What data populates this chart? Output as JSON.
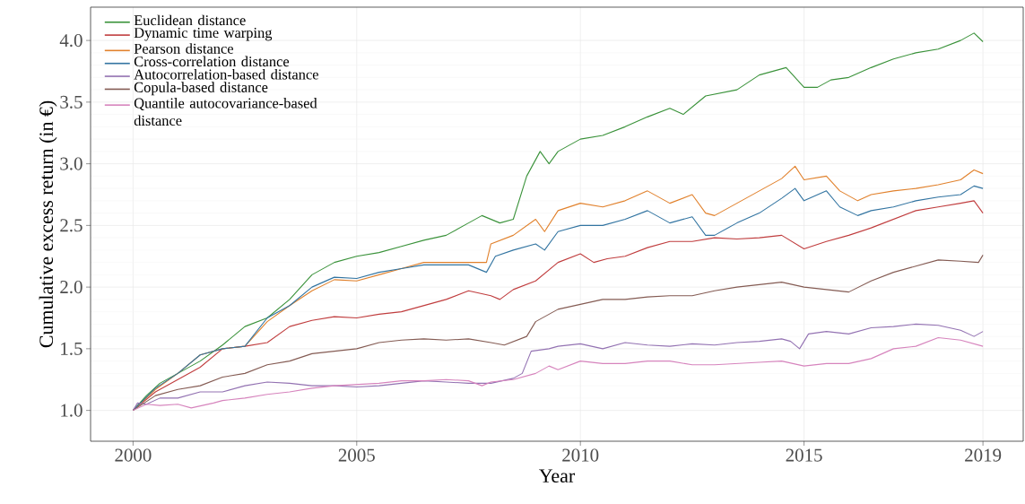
{
  "chart_data": {
    "type": "line",
    "xlabel": "Year",
    "ylabel": "Cumulative excess return (in €)",
    "xlim": [
      1999.05,
      2019.9
    ],
    "ylim": [
      0.75,
      4.27
    ],
    "xticks": [
      2000,
      2005,
      2010,
      2015,
      2019
    ],
    "yticks": [
      {
        "value": 1,
        "label": "1.0"
      },
      {
        "value": 1.5,
        "label": "1.5"
      },
      {
        "value": 2,
        "label": "2.0"
      },
      {
        "value": 2.5,
        "label": "2.5"
      },
      {
        "value": 3,
        "label": "3.0"
      },
      {
        "value": 3.5,
        "label": "3.5"
      },
      {
        "value": 4,
        "label": "4.0"
      }
    ],
    "grid": true,
    "legend": "top left",
    "line_style": "solid",
    "series": [
      {
        "name": "Euclidean distance",
        "color": "#3a923a",
        "x": [
          2000,
          2000.3,
          2000.6,
          2001,
          2001.5,
          2002,
          2002.5,
          2003,
          2003.5,
          2004,
          2004.5,
          2005,
          2005.5,
          2006,
          2006.5,
          2007,
          2007.5,
          2007.8,
          2008.2,
          2008.5,
          2008.8,
          2009.1,
          2009.3,
          2009.5,
          2010,
          2010.5,
          2011,
          2011.5,
          2012,
          2012.3,
          2012.8,
          2013.5,
          2014,
          2014.6,
          2015,
          2015.3,
          2015.6,
          2016,
          2016.5,
          2017,
          2017.5,
          2018,
          2018.5,
          2018.8,
          2019
        ],
        "values": [
          1.0,
          1.12,
          1.22,
          1.3,
          1.4,
          1.53,
          1.68,
          1.75,
          1.9,
          2.1,
          2.2,
          2.25,
          2.28,
          2.33,
          2.38,
          2.42,
          2.52,
          2.58,
          2.52,
          2.55,
          2.9,
          3.1,
          3.0,
          3.1,
          3.2,
          3.23,
          3.3,
          3.38,
          3.45,
          3.4,
          3.55,
          3.6,
          3.72,
          3.78,
          3.62,
          3.62,
          3.68,
          3.7,
          3.78,
          3.85,
          3.9,
          3.93,
          4.0,
          4.06,
          3.99
        ]
      },
      {
        "name": "Dynamic time warping",
        "color": "#c03d3e",
        "x": [
          2000,
          2000.5,
          2001,
          2001.5,
          2002,
          2002.5,
          2003,
          2003.5,
          2004,
          2004.5,
          2005,
          2005.5,
          2006,
          2006.5,
          2007,
          2007.5,
          2008,
          2008.2,
          2008.5,
          2009,
          2009.5,
          2010,
          2010.3,
          2010.6,
          2011,
          2011.5,
          2012,
          2012.5,
          2013,
          2013.5,
          2014,
          2014.5,
          2015,
          2015.5,
          2016,
          2016.5,
          2017,
          2017.5,
          2018,
          2018.5,
          2018.8,
          2019
        ],
        "values": [
          1.0,
          1.15,
          1.25,
          1.35,
          1.5,
          1.52,
          1.55,
          1.68,
          1.73,
          1.76,
          1.75,
          1.78,
          1.8,
          1.85,
          1.9,
          1.97,
          1.93,
          1.9,
          1.98,
          2.05,
          2.2,
          2.27,
          2.2,
          2.23,
          2.25,
          2.32,
          2.37,
          2.37,
          2.4,
          2.39,
          2.4,
          2.42,
          2.31,
          2.37,
          2.42,
          2.48,
          2.55,
          2.62,
          2.65,
          2.68,
          2.7,
          2.6
        ]
      },
      {
        "name": "Pearson distance",
        "color": "#e1812c",
        "x": [
          2000,
          2000.5,
          2001,
          2001.5,
          2002,
          2002.5,
          2003,
          2003.5,
          2004,
          2004.5,
          2005,
          2005.5,
          2006,
          2006.5,
          2007,
          2007.5,
          2007.9,
          2008,
          2008.5,
          2009,
          2009.2,
          2009.5,
          2010,
          2010.5,
          2011,
          2011.5,
          2012,
          2012.5,
          2012.8,
          2013,
          2013.5,
          2014,
          2014.5,
          2014.8,
          2015,
          2015.5,
          2015.8,
          2016.2,
          2016.5,
          2017,
          2017.5,
          2018,
          2018.5,
          2018.8,
          2019
        ],
        "values": [
          1.0,
          1.17,
          1.3,
          1.45,
          1.5,
          1.52,
          1.72,
          1.85,
          1.97,
          2.06,
          2.05,
          2.1,
          2.15,
          2.2,
          2.2,
          2.2,
          2.2,
          2.35,
          2.42,
          2.55,
          2.45,
          2.62,
          2.68,
          2.65,
          2.7,
          2.78,
          2.68,
          2.75,
          2.6,
          2.58,
          2.68,
          2.78,
          2.88,
          2.98,
          2.87,
          2.9,
          2.78,
          2.7,
          2.75,
          2.78,
          2.8,
          2.83,
          2.87,
          2.95,
          2.92
        ]
      },
      {
        "name": "Cross-correlation distance",
        "color": "#3274a1",
        "x": [
          2000,
          2000.5,
          2001,
          2001.5,
          2002,
          2002.5,
          2003,
          2003.5,
          2004,
          2004.5,
          2005,
          2005.5,
          2006,
          2006.5,
          2007,
          2007.5,
          2007.9,
          2008.1,
          2008.5,
          2009,
          2009.2,
          2009.5,
          2010,
          2010.5,
          2011,
          2011.5,
          2012,
          2012.5,
          2012.8,
          2013,
          2013.5,
          2014,
          2014.5,
          2014.8,
          2015,
          2015.5,
          2015.8,
          2016.2,
          2016.5,
          2017,
          2017.5,
          2018,
          2018.5,
          2018.8,
          2019
        ],
        "values": [
          1.0,
          1.18,
          1.3,
          1.45,
          1.5,
          1.52,
          1.75,
          1.85,
          2.0,
          2.08,
          2.07,
          2.12,
          2.15,
          2.18,
          2.18,
          2.18,
          2.12,
          2.25,
          2.3,
          2.35,
          2.3,
          2.45,
          2.5,
          2.5,
          2.55,
          2.62,
          2.52,
          2.57,
          2.42,
          2.42,
          2.52,
          2.6,
          2.72,
          2.8,
          2.7,
          2.78,
          2.65,
          2.58,
          2.62,
          2.65,
          2.7,
          2.73,
          2.75,
          2.82,
          2.8
        ]
      },
      {
        "name": "Autocorrelation-based distance",
        "color": "#9372b2",
        "x": [
          2000,
          2000.1,
          2000.3,
          2000.6,
          2001,
          2001.5,
          2002,
          2002.5,
          2003,
          2003.5,
          2004,
          2004.5,
          2005,
          2005.5,
          2006,
          2006.5,
          2007,
          2007.5,
          2008,
          2008.5,
          2008.7,
          2008.9,
          2009.3,
          2009.5,
          2010,
          2010.5,
          2011,
          2011.5,
          2012,
          2012.5,
          2013,
          2013.5,
          2014,
          2014.5,
          2014.7,
          2014.9,
          2015.1,
          2015.5,
          2016,
          2016.5,
          2017,
          2017.5,
          2018,
          2018.5,
          2018.8,
          2019
        ],
        "values": [
          1.0,
          1.06,
          1.05,
          1.1,
          1.1,
          1.15,
          1.15,
          1.2,
          1.23,
          1.22,
          1.2,
          1.2,
          1.19,
          1.2,
          1.22,
          1.24,
          1.23,
          1.22,
          1.22,
          1.26,
          1.3,
          1.48,
          1.5,
          1.52,
          1.54,
          1.5,
          1.55,
          1.53,
          1.52,
          1.54,
          1.53,
          1.55,
          1.56,
          1.58,
          1.56,
          1.5,
          1.62,
          1.64,
          1.62,
          1.67,
          1.68,
          1.7,
          1.69,
          1.65,
          1.6,
          1.64
        ]
      },
      {
        "name": "Copula-based distance",
        "color": "#845b53",
        "x": [
          2000,
          2000.5,
          2001,
          2001.5,
          2002,
          2002.5,
          2003,
          2003.5,
          2004,
          2004.5,
          2005,
          2005.5,
          2006,
          2006.5,
          2007,
          2007.5,
          2008,
          2008.3,
          2008.8,
          2009,
          2009.5,
          2010,
          2010.5,
          2011,
          2011.5,
          2012,
          2012.5,
          2013,
          2013.5,
          2014,
          2014.5,
          2015,
          2015.5,
          2016,
          2016.5,
          2017,
          2017.5,
          2018,
          2018.5,
          2018.9,
          2019
        ],
        "values": [
          1.0,
          1.12,
          1.17,
          1.2,
          1.27,
          1.3,
          1.37,
          1.4,
          1.46,
          1.48,
          1.5,
          1.55,
          1.57,
          1.58,
          1.57,
          1.58,
          1.55,
          1.53,
          1.6,
          1.72,
          1.82,
          1.86,
          1.9,
          1.9,
          1.92,
          1.93,
          1.93,
          1.97,
          2.0,
          2.02,
          2.04,
          2.0,
          1.98,
          1.96,
          2.05,
          2.12,
          2.17,
          2.22,
          2.21,
          2.2,
          2.26
        ]
      },
      {
        "name": "Quantile autocovariance-based distance",
        "color": "#d684bd",
        "x": [
          2000,
          2000.3,
          2000.6,
          2001,
          2001.3,
          2001.8,
          2002,
          2002.5,
          2003,
          2003.5,
          2004,
          2004.5,
          2005,
          2005.5,
          2006,
          2006.5,
          2007,
          2007.5,
          2007.8,
          2008,
          2008.5,
          2009,
          2009.3,
          2009.5,
          2010,
          2010.5,
          2011,
          2011.5,
          2012,
          2012.5,
          2013,
          2013.5,
          2014,
          2014.5,
          2015,
          2015.5,
          2016,
          2016.5,
          2017,
          2017.5,
          2018,
          2018.5,
          2019
        ],
        "values": [
          1.0,
          1.05,
          1.04,
          1.05,
          1.02,
          1.06,
          1.08,
          1.1,
          1.13,
          1.15,
          1.18,
          1.2,
          1.21,
          1.22,
          1.24,
          1.24,
          1.25,
          1.24,
          1.2,
          1.23,
          1.25,
          1.3,
          1.36,
          1.33,
          1.4,
          1.38,
          1.38,
          1.4,
          1.4,
          1.37,
          1.37,
          1.38,
          1.39,
          1.4,
          1.36,
          1.38,
          1.38,
          1.42,
          1.5,
          1.52,
          1.59,
          1.57,
          1.52
        ]
      }
    ]
  }
}
